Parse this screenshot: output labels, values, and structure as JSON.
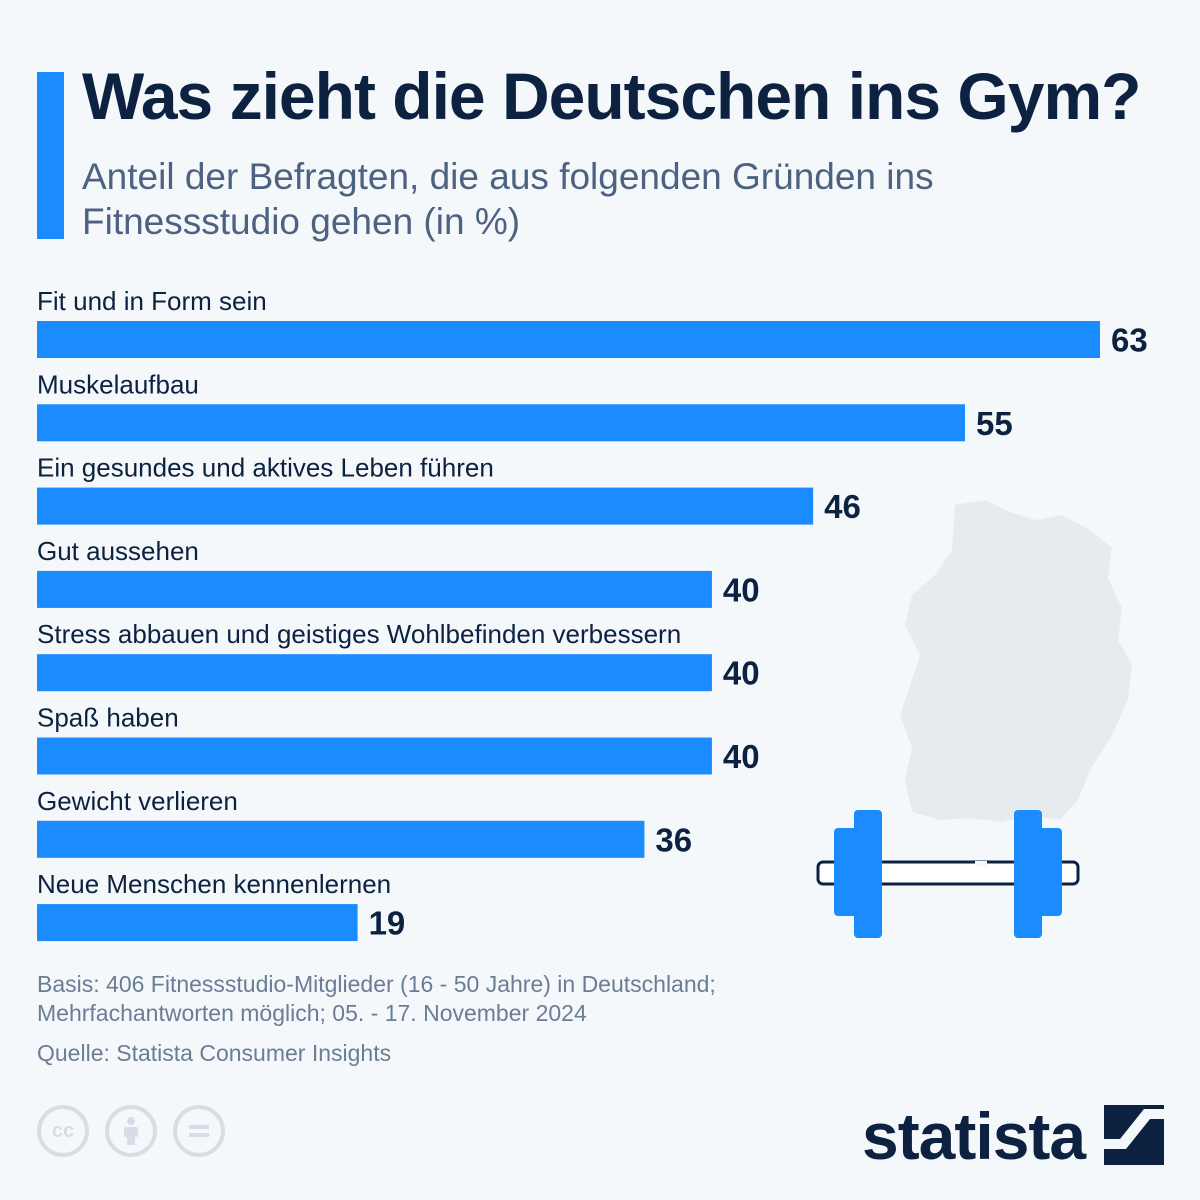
{
  "header": {
    "title": "Was zieht die Deutschen ins Gym?",
    "subtitle": "Anteil der Befragten, die aus folgenden Gründen ins Fitnessstudio gehen (in %)"
  },
  "chart_data": {
    "type": "bar",
    "orientation": "horizontal",
    "categories": [
      "Fit und in Form sein",
      "Muskelaufbau",
      "Ein gesundes und aktives Leben führen",
      "Gut aussehen",
      "Stress abbauen und geistiges Wohlbefinden verbessern",
      "Spaß haben",
      "Gewicht verlieren",
      "Neue Menschen kennenlernen"
    ],
    "values": [
      63,
      55,
      46,
      40,
      40,
      40,
      36,
      19
    ],
    "xlim": [
      0,
      63
    ],
    "grid": false,
    "bar_color": "#1a8cff"
  },
  "footer": {
    "basis": "Basis: 406 Fitnessstudio-Mitglieder (16 - 50 Jahre) in Deutschland; Mehrfachantworten möglich; 05. - 17. November 2024",
    "source": "Quelle: Statista Consumer Insights",
    "brand": "statista",
    "license_icons": [
      "cc-icon",
      "attribution-icon",
      "no-derivatives-icon"
    ]
  },
  "colors": {
    "accent": "#1a8cff",
    "title": "#0d2240",
    "subtitle": "#4d6280",
    "footnote": "#6b7d95",
    "decor": "#e6ebf0"
  },
  "decorations": [
    "germany-map-icon",
    "dumbbell-icon"
  ]
}
